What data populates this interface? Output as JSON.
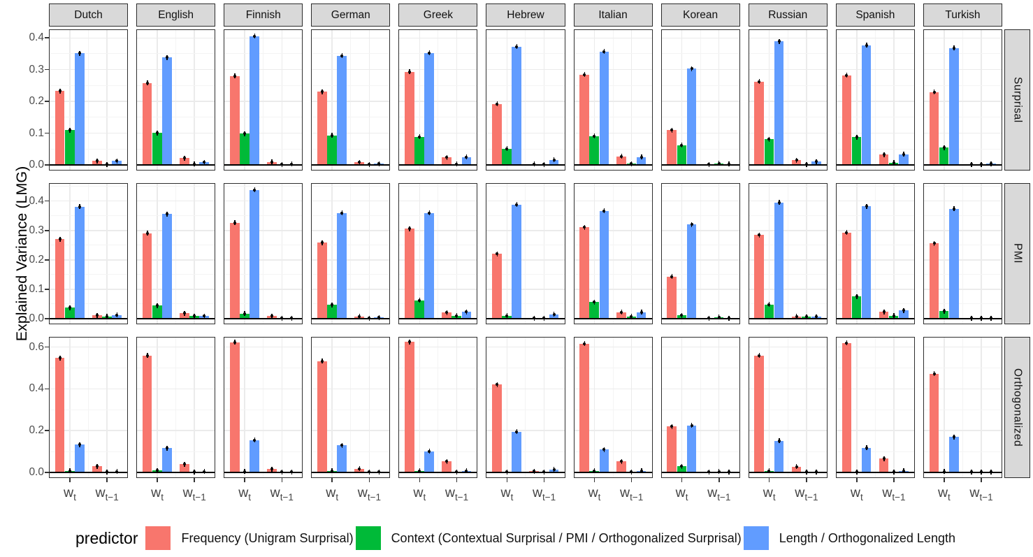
{
  "figure": {
    "legend": {
      "title": "predictor",
      "items": [
        {
          "label": "Frequency (Unigram Surprisal)",
          "color": "#F8766D"
        },
        {
          "label": "Context (Contextual Surprisal / PMI / Orthogonalized Surprisal)",
          "color": "#00BA38"
        },
        {
          "label": "Length / Orthogonalized Length",
          "color": "#619CFF"
        }
      ]
    }
  },
  "chart_data": {
    "type": "bar",
    "title": "",
    "ylabel": "Explained Variance (LMG)",
    "facet_cols": [
      "Dutch",
      "English",
      "Finnish",
      "German",
      "Greek",
      "Hebrew",
      "Italian",
      "Korean",
      "Russian",
      "Spanish",
      "Turkish"
    ],
    "facet_rows": [
      "Surprisal",
      "PMI",
      "Orthogonalized"
    ],
    "x_categories": [
      "wt",
      "wt-1"
    ],
    "x_tick_labels": [
      {
        "base": "w",
        "sub": "t"
      },
      {
        "base": "w",
        "sub": "t−1"
      }
    ],
    "series": [
      "Frequency (Unigram Surprisal)",
      "Context (Contextual Surprisal / PMI / Orthogonalized Surprisal)",
      "Length / Orthogonalized Length"
    ],
    "series_colors": [
      "#F8766D",
      "#00BA38",
      "#619CFF"
    ],
    "point_markers_at_bar_tops": true,
    "grid": true,
    "legend_position": "bottom",
    "row_scales": [
      {
        "ticks": [
          0.0,
          0.1,
          0.2,
          0.3,
          0.4
        ],
        "minor_step": 0.05,
        "ymax": 0.427
      },
      {
        "ticks": [
          0.0,
          0.1,
          0.2,
          0.3,
          0.4
        ],
        "minor_step": 0.05,
        "ymax": 0.461
      },
      {
        "ticks": [
          0.0,
          0.2,
          0.4,
          0.6
        ],
        "minor_step": 0.1,
        "ymax": 0.649
      }
    ],
    "values": {
      "Surprisal": {
        "Dutch": [
          [
            0.233,
            0.11,
            0.352
          ],
          [
            0.013,
            0.002,
            0.013
          ]
        ],
        "English": [
          [
            0.258,
            0.101,
            0.338
          ],
          [
            0.021,
            0.003,
            0.008
          ]
        ],
        "Finnish": [
          [
            0.28,
            0.099,
            0.405
          ],
          [
            0.009,
            0.002,
            0.003
          ]
        ],
        "German": [
          [
            0.231,
            0.093,
            0.344
          ],
          [
            0.008,
            0.002,
            0.004
          ]
        ],
        "Greek": [
          [
            0.293,
            0.089,
            0.353
          ],
          [
            0.024,
            0.003,
            0.025
          ]
        ],
        "Hebrew": [
          [
            0.192,
            0.051,
            0.372
          ],
          [
            0.003,
            0.002,
            0.016
          ]
        ],
        "Italian": [
          [
            0.285,
            0.091,
            0.357
          ],
          [
            0.027,
            0.004,
            0.025
          ]
        ],
        "Korean": [
          [
            0.11,
            0.062,
            0.303
          ],
          [
            0.002,
            0.005,
            0.003
          ]
        ],
        "Russian": [
          [
            0.262,
            0.081,
            0.389
          ],
          [
            0.015,
            0.002,
            0.01
          ]
        ],
        "Spanish": [
          [
            0.282,
            0.088,
            0.377
          ],
          [
            0.033,
            0.007,
            0.034
          ]
        ],
        "Turkish": [
          [
            0.23,
            0.055,
            0.368
          ],
          [
            0.002,
            0.001,
            0.004
          ]
        ]
      },
      "PMI": {
        "Dutch": [
          [
            0.27,
            0.038,
            0.381
          ],
          [
            0.011,
            0.008,
            0.012
          ]
        ],
        "English": [
          [
            0.291,
            0.045,
            0.356
          ],
          [
            0.019,
            0.009,
            0.009
          ]
        ],
        "Finnish": [
          [
            0.326,
            0.017,
            0.438
          ],
          [
            0.009,
            0.001,
            0.002
          ]
        ],
        "German": [
          [
            0.258,
            0.047,
            0.36
          ],
          [
            0.008,
            0.002,
            0.004
          ]
        ],
        "Greek": [
          [
            0.306,
            0.062,
            0.36
          ],
          [
            0.021,
            0.01,
            0.023
          ]
        ],
        "Hebrew": [
          [
            0.22,
            0.01,
            0.388
          ],
          [
            0.001,
            0.002,
            0.015
          ]
        ],
        "Italian": [
          [
            0.311,
            0.057,
            0.366
          ],
          [
            0.022,
            0.008,
            0.022
          ]
        ],
        "Korean": [
          [
            0.143,
            0.011,
            0.32
          ],
          [
            0.001,
            0.005,
            0.002
          ]
        ],
        "Russian": [
          [
            0.285,
            0.048,
            0.395
          ],
          [
            0.008,
            0.007,
            0.007
          ]
        ],
        "Spanish": [
          [
            0.293,
            0.075,
            0.382
          ],
          [
            0.023,
            0.01,
            0.028
          ]
        ],
        "Turkish": [
          [
            0.256,
            0.025,
            0.374
          ],
          [
            0.001,
            0.001,
            0.002
          ]
        ]
      },
      "Orthogonalized": {
        "Dutch": [
          [
            0.547,
            0.008,
            0.133
          ],
          [
            0.03,
            0.002,
            0.004
          ]
        ],
        "English": [
          [
            0.56,
            0.01,
            0.117
          ],
          [
            0.04,
            0.002,
            0.004
          ]
        ],
        "Finnish": [
          [
            0.623,
            0.005,
            0.154
          ],
          [
            0.016,
            0.001,
            0.003
          ]
        ],
        "German": [
          [
            0.532,
            0.008,
            0.129
          ],
          [
            0.018,
            0.001,
            0.002
          ]
        ],
        "Greek": [
          [
            0.625,
            0.007,
            0.101
          ],
          [
            0.052,
            0.002,
            0.008
          ]
        ],
        "Hebrew": [
          [
            0.42,
            0.003,
            0.195
          ],
          [
            0.006,
            0.001,
            0.015
          ]
        ],
        "Italian": [
          [
            0.617,
            0.008,
            0.11
          ],
          [
            0.053,
            0.002,
            0.007
          ]
        ],
        "Korean": [
          [
            0.22,
            0.03,
            0.225
          ],
          [
            0.003,
            0.005,
            0.002
          ]
        ],
        "Russian": [
          [
            0.56,
            0.008,
            0.151
          ],
          [
            0.028,
            0.002,
            0.003
          ]
        ],
        "Spanish": [
          [
            0.62,
            0.003,
            0.118
          ],
          [
            0.066,
            0.002,
            0.008
          ]
        ],
        "Turkish": [
          [
            0.473,
            0.005,
            0.17
          ],
          [
            0.003,
            0.001,
            0.003
          ]
        ]
      }
    }
  }
}
